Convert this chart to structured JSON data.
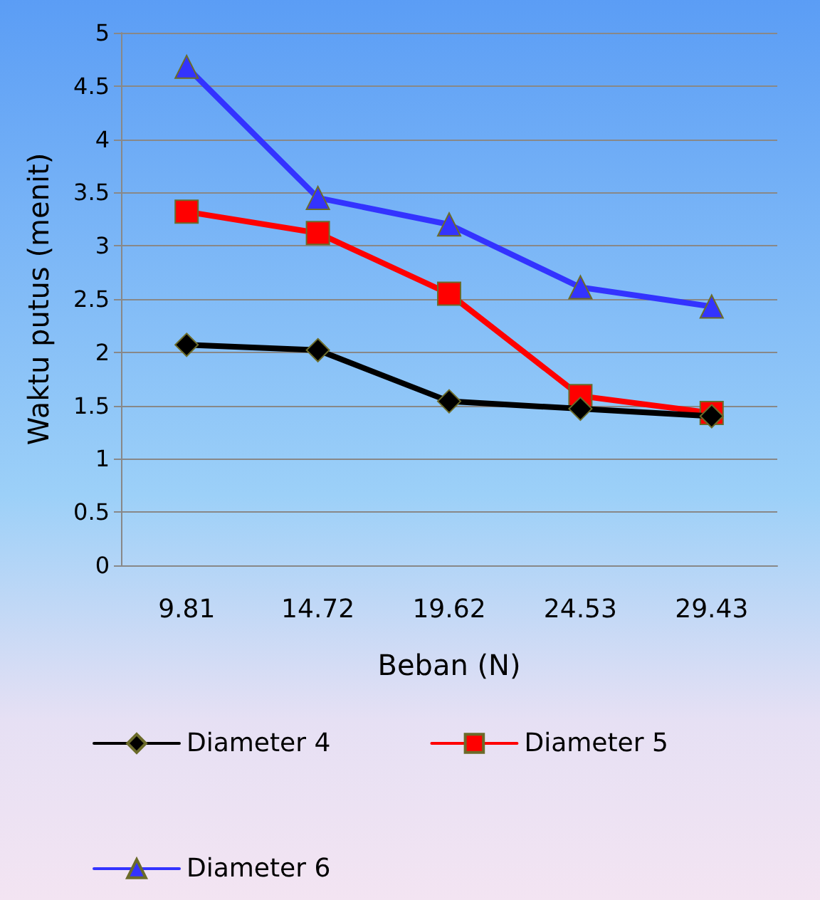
{
  "chart_data": {
    "type": "line",
    "xlabel": "Beban (N)",
    "ylabel": "Waktu putus (menit)",
    "categories": [
      "9.81",
      "14.72",
      "19.62",
      "24.53",
      "29.43"
    ],
    "series": [
      {
        "name": "Diameter 4",
        "color": "#000000",
        "marker": "diamond",
        "values": [
          2.07,
          2.02,
          1.54,
          1.47,
          1.4
        ]
      },
      {
        "name": "Diameter 5",
        "color": "#ff0000",
        "marker": "square",
        "values": [
          3.32,
          3.12,
          2.55,
          1.59,
          1.43
        ]
      },
      {
        "name": "Diameter 6",
        "color": "#3333ff",
        "marker": "triangle",
        "values": [
          4.68,
          3.45,
          3.2,
          2.61,
          2.43
        ]
      }
    ],
    "ylim": [
      0,
      5
    ],
    "yticks": [
      0,
      0.5,
      1,
      1.5,
      2,
      2.5,
      3,
      3.5,
      4,
      4.5,
      5
    ],
    "grid": "y",
    "legend": "bottom"
  }
}
